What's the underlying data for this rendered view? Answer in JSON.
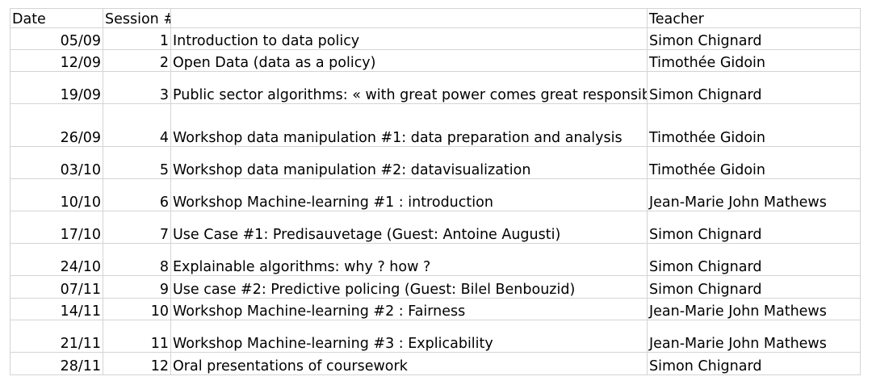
{
  "headers": {
    "date": "Date",
    "session": "Session #",
    "title": "",
    "teacher": "Teacher"
  },
  "rows": [
    {
      "date": "05/09",
      "session": "1",
      "title": "Introduction to data policy",
      "teacher": "Simon Chignard"
    },
    {
      "date": "12/09",
      "session": "2",
      "title": "Open Data (data as a policy)",
      "teacher": "Timothée Gidoin"
    },
    {
      "date": "19/09",
      "session": "3",
      "title": "Public sector algorithms: « with great power comes great responsibility »",
      "teacher": "Simon Chignard"
    },
    {
      "date": "26/09",
      "session": "4",
      "title": "Workshop data manipulation #1: data preparation and analysis",
      "teacher": "Timothée Gidoin"
    },
    {
      "date": "03/10",
      "session": "5",
      "title": "Workshop data manipulation #2: datavisualization",
      "teacher": "Timothée Gidoin"
    },
    {
      "date": "10/10",
      "session": "6",
      "title": "Workshop Machine-learning #1 : introduction",
      "teacher": "Jean-Marie John Mathews"
    },
    {
      "date": "17/10",
      "session": "7",
      "title": "Use Case #1: Predisauvetage (Guest: Antoine Augusti)",
      "teacher": "Simon Chignard"
    },
    {
      "date": "24/10",
      "session": "8",
      "title": "Explainable algorithms: why ? how ?",
      "teacher": "Simon Chignard"
    },
    {
      "date": "07/11",
      "session": "9",
      "title": "Use case #2: Predictive policing (Guest: Bilel Benbouzid)",
      "teacher": "Simon Chignard"
    },
    {
      "date": "14/11",
      "session": "10",
      "title": "Workshop Machine-learning #2 : Fairness",
      "teacher": "Jean-Marie John Mathews"
    },
    {
      "date": "21/11",
      "session": "11",
      "title": "Workshop Machine-learning #3 : Explicability",
      "teacher": "Jean-Marie John Mathews"
    },
    {
      "date": "28/11",
      "session": "12",
      "title": "Oral presentations of coursework",
      "teacher": "Simon Chignard"
    }
  ]
}
